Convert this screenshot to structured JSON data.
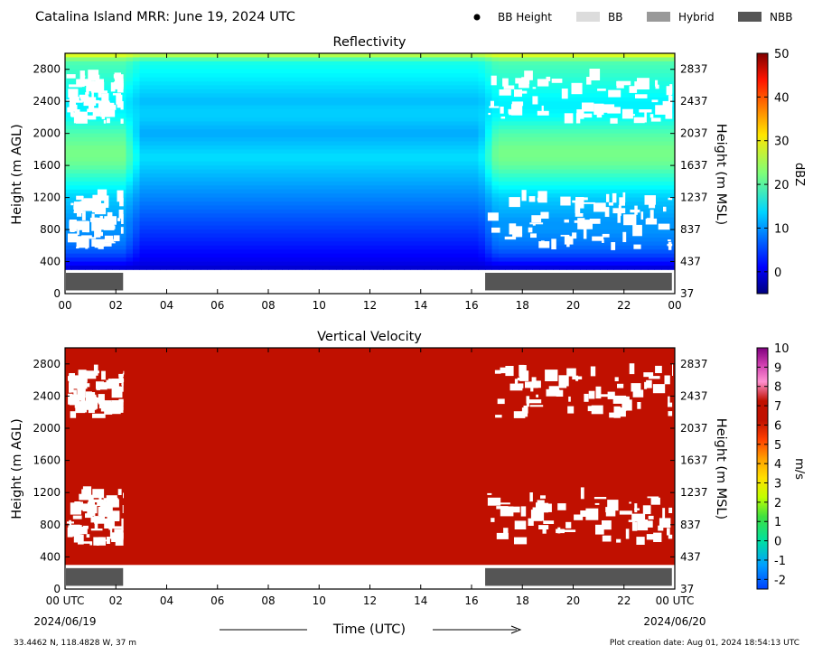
{
  "header": {
    "title": "Catalina Island MRR:  June 19, 2024 UTC",
    "legend": [
      {
        "label": "BB Height",
        "marker": "dot",
        "color": "#000000"
      },
      {
        "label": "BB",
        "marker": "box",
        "color": "#dcdcdc"
      },
      {
        "label": "Hybrid",
        "marker": "box",
        "color": "#999999"
      },
      {
        "label": "NBB",
        "marker": "box",
        "color": "#555555"
      }
    ]
  },
  "chart_data": [
    {
      "type": "heatmap",
      "title": "Reflectivity",
      "ylabel": "Height (m AGL)",
      "y2label": "Height (m MSL)",
      "ylim": [
        0,
        3000
      ],
      "xlim": [
        0,
        24
      ],
      "yticks": [
        "0",
        "400",
        "800",
        "1200",
        "1600",
        "2000",
        "2400",
        "2800"
      ],
      "yticks_values": [
        0,
        400,
        800,
        1200,
        1600,
        2000,
        2400,
        2800
      ],
      "y2ticks": [
        "37",
        "437",
        "837",
        "1237",
        "1637",
        "2037",
        "2437",
        "2837"
      ],
      "xticks": [
        "00",
        "02",
        "04",
        "06",
        "08",
        "10",
        "12",
        "14",
        "16",
        "18",
        "20",
        "22",
        "00"
      ],
      "xticks_values": [
        0,
        2,
        4,
        6,
        8,
        10,
        12,
        14,
        16,
        18,
        20,
        22,
        24
      ],
      "colorbar": {
        "label": "dBZ",
        "range": [
          -5,
          50
        ],
        "ticks": [
          "0",
          "10",
          "20",
          "30",
          "40",
          "50"
        ],
        "ticks_values": [
          0,
          10,
          20,
          30,
          40,
          50
        ]
      },
      "nbb_segments": [
        [
          0,
          2.25
        ],
        [
          16.5,
          23.85
        ]
      ],
      "profile_dBZ": {
        "heights": [
          300,
          400,
          500,
          600,
          700,
          800,
          900,
          1000,
          1100,
          1200,
          1300,
          1400,
          1500,
          1600,
          1700,
          1800,
          1900,
          2000,
          2100,
          2200,
          2300,
          2400,
          2500,
          2600,
          2700,
          2800,
          2900,
          3000
        ],
        "day": [
          -1,
          1,
          2,
          3,
          4,
          5,
          6,
          7,
          8,
          9,
          10,
          11,
          12,
          13,
          14,
          13,
          12,
          11,
          12,
          13,
          13,
          12,
          13,
          14,
          15,
          16,
          17,
          28
        ],
        "night": [
          -1,
          3,
          6,
          8,
          9,
          10,
          10,
          11,
          12,
          13,
          15,
          17,
          19,
          21,
          22,
          22,
          21,
          20,
          18,
          16,
          15,
          15,
          16,
          17,
          18,
          19,
          20,
          30
        ]
      },
      "valid_from_m": 300
    },
    {
      "type": "heatmap",
      "title": "Vertical Velocity",
      "ylabel": "Height (m AGL)",
      "y2label": "Height (m MSL)",
      "xlabel": "Time (UTC)",
      "ylim": [
        0,
        3000
      ],
      "xlim": [
        0,
        24
      ],
      "yticks": [
        "0",
        "400",
        "800",
        "1200",
        "1600",
        "2000",
        "2400",
        "2800"
      ],
      "yticks_values": [
        0,
        400,
        800,
        1200,
        1600,
        2000,
        2400,
        2800
      ],
      "y2ticks": [
        "37",
        "437",
        "837",
        "1237",
        "1637",
        "2037",
        "2437",
        "2837"
      ],
      "xticks": [
        "00 UTC",
        "02",
        "04",
        "06",
        "08",
        "10",
        "12",
        "14",
        "16",
        "18",
        "20",
        "22",
        "00 UTC"
      ],
      "xticks_values": [
        0,
        2,
        4,
        6,
        8,
        10,
        12,
        14,
        16,
        18,
        20,
        22,
        24
      ],
      "date_start": "2024/06/19",
      "date_end": "2024/06/20",
      "colorbar": {
        "label": "m/s",
        "range": [
          -2.5,
          10
        ],
        "ticks": [
          "-2",
          "-1",
          "0",
          "1",
          "2",
          "3",
          "4",
          "5",
          "6",
          "7",
          "8",
          "9",
          "10"
        ],
        "ticks_values": [
          -2,
          -1,
          0,
          1,
          2,
          3,
          4,
          5,
          6,
          7,
          8,
          9,
          10
        ]
      },
      "nbb_segments": [
        [
          0,
          2.25
        ],
        [
          16.5,
          23.85
        ]
      ],
      "value_m_s": 6,
      "valid_from_m": 300
    }
  ],
  "footer": {
    "coords": "33.4462 N, 118.4828 W, 37 m",
    "creation": "Plot creation date: Aug 01, 2024 18:54:13 UTC"
  },
  "colors": {
    "nbb": "#555555",
    "velocity_fill": "#c01000"
  }
}
